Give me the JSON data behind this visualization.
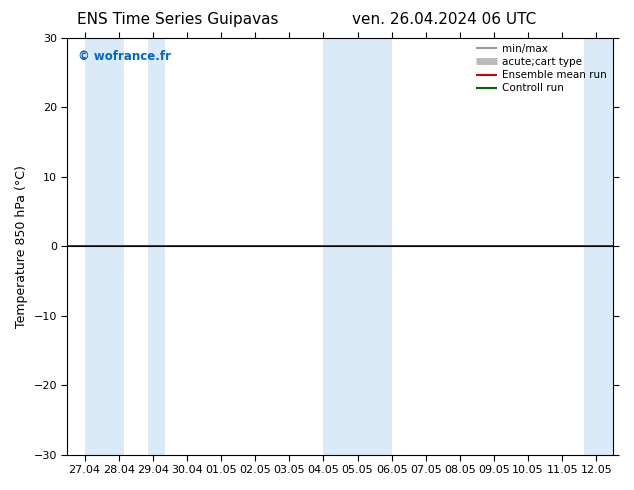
{
  "title_left": "ENS Time Series Guipavas",
  "title_right": "ven. 26.04.2024 06 UTC",
  "ylabel": "Temperature 850 hPa (°C)",
  "ylim": [
    -30,
    30
  ],
  "yticks": [
    -30,
    -20,
    -10,
    0,
    10,
    20,
    30
  ],
  "xtick_labels": [
    "27.04",
    "28.04",
    "29.04",
    "30.04",
    "01.05",
    "02.05",
    "03.05",
    "04.05",
    "05.05",
    "06.05",
    "07.05",
    "08.05",
    "09.05",
    "10.05",
    "11.05",
    "12.05"
  ],
  "xtick_positions": [
    0,
    1,
    2,
    3,
    4,
    5,
    6,
    7,
    8,
    9,
    10,
    11,
    12,
    13,
    14,
    15
  ],
  "xlim": [
    -0.5,
    15.5
  ],
  "blue_bands": [
    [
      0.0,
      1.15
    ],
    [
      1.85,
      2.35
    ],
    [
      7.0,
      9.0
    ],
    [
      14.65,
      15.5
    ]
  ],
  "light_blue": "#daeaf7",
  "zero_line_color": "#000000",
  "zero_line_lw": 0.8,
  "control_run_color": "#006600",
  "control_run_lw": 1.2,
  "ensemble_mean_color": "#cc0000",
  "ensemble_mean_lw": 1.2,
  "watermark": "© wofrance.fr",
  "watermark_color": "#0066cc",
  "background_color": "#ffffff",
  "legend_items": [
    {
      "label": "min/max",
      "color": "#999999",
      "lw": 1.5
    },
    {
      "label": "acute;cart type",
      "color": "#bbbbbb",
      "lw": 5
    },
    {
      "label": "Ensemble mean run",
      "color": "#cc0000",
      "lw": 1.5
    },
    {
      "label": "Controll run",
      "color": "#006600",
      "lw": 1.5
    }
  ],
  "title_fontsize": 11,
  "tick_fontsize": 8,
  "label_fontsize": 9,
  "watermark_fontsize": 8.5,
  "legend_fontsize": 7.5
}
